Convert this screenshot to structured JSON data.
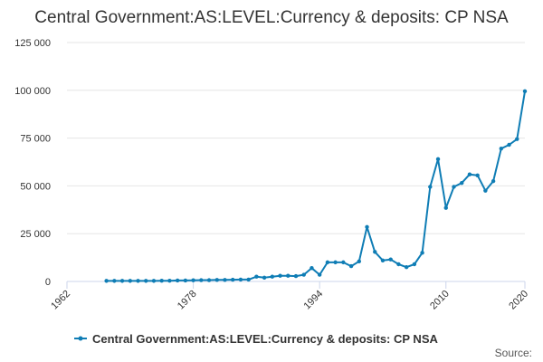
{
  "chart_data": {
    "type": "line",
    "title": "Central Government:AS:LEVEL:Currency & deposits: CP NSA",
    "xlabel": "",
    "ylabel": "",
    "xlim": [
      1962,
      2020
    ],
    "ylim": [
      0,
      125000
    ],
    "x_ticks": [
      "1962",
      "1978",
      "1994",
      "2010",
      "2020"
    ],
    "y_ticks": [
      "0",
      "25 000",
      "50 000",
      "75 000",
      "100 000",
      "125 000"
    ],
    "grid": true,
    "legend_position": "bottom",
    "line_color": "#0f7db5",
    "series": [
      {
        "name": "Central Government:AS:LEVEL:Currency & deposits: CP NSA",
        "x": [
          1967,
          1968,
          1969,
          1970,
          1971,
          1972,
          1973,
          1974,
          1975,
          1976,
          1977,
          1978,
          1979,
          1980,
          1981,
          1982,
          1983,
          1984,
          1985,
          1986,
          1987,
          1988,
          1989,
          1990,
          1991,
          1992,
          1993,
          1994,
          1995,
          1996,
          1997,
          1998,
          1999,
          2000,
          2001,
          2002,
          2003,
          2004,
          2005,
          2006,
          2007,
          2008,
          2009,
          2010,
          2011,
          2012,
          2013,
          2014,
          2015,
          2016,
          2017,
          2018,
          2019,
          2020
        ],
        "y": [
          300,
          300,
          300,
          300,
          300,
          300,
          300,
          400,
          400,
          500,
          500,
          600,
          700,
          700,
          800,
          800,
          900,
          1000,
          1000,
          2500,
          2000,
          2500,
          3000,
          3000,
          2800,
          3500,
          7000,
          3500,
          10000,
          10000,
          10000,
          8000,
          10500,
          28500,
          15500,
          11000,
          11500,
          9000,
          7500,
          9000,
          15000,
          49500,
          64000,
          38500,
          49500,
          51500,
          56000,
          55500,
          47500,
          52500,
          69500,
          71500,
          74500,
          99500
        ]
      }
    ]
  },
  "source_label": "Source:"
}
